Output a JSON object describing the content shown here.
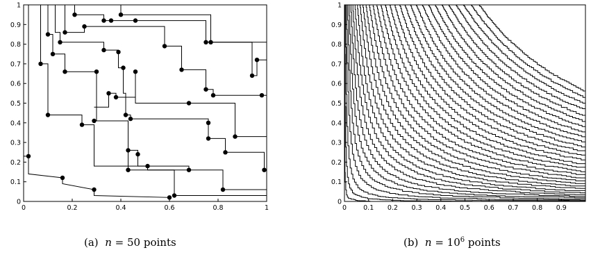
{
  "figure": {
    "panel_a": {
      "label": "(a)",
      "caption_var": "n",
      "caption_eq": " = ",
      "caption_value": "50",
      "caption_unit": " points",
      "x_ticks": [
        "0",
        "0.2",
        "0.4",
        "0.6",
        "0.8",
        "1"
      ],
      "y_ticks": [
        "0",
        "0.1",
        "0.2",
        "0.3",
        "0.4",
        "0.5",
        "0.6",
        "0.7",
        "0.8",
        "0.9",
        "1"
      ]
    },
    "panel_b": {
      "label": "(b)",
      "caption_var": "n",
      "caption_eq": " = ",
      "caption_base": "10",
      "caption_exp": "6",
      "caption_unit": " points",
      "x_ticks": [
        "0",
        "0.1",
        "0.2",
        "0.3",
        "0.4",
        "0.5",
        "0.6",
        "0.7",
        "0.8",
        "0.9"
      ],
      "y_ticks": [
        "0",
        "0.1",
        "0.2",
        "0.3",
        "0.4",
        "0.5",
        "0.6",
        "0.7",
        "0.8",
        "0.9",
        "1"
      ]
    }
  },
  "chart_data": [
    {
      "type": "scatter",
      "title": "",
      "xlim": [
        0,
        1
      ],
      "ylim": [
        0,
        1
      ],
      "grid": false,
      "note": "staircase chains drawn through points",
      "points": [
        [
          0.02,
          0.23
        ],
        [
          0.07,
          0.7
        ],
        [
          0.1,
          0.85
        ],
        [
          0.1,
          0.44
        ],
        [
          0.12,
          0.75
        ],
        [
          0.15,
          0.81
        ],
        [
          0.16,
          0.12
        ],
        [
          0.17,
          0.66
        ],
        [
          0.17,
          0.86
        ],
        [
          0.21,
          0.95
        ],
        [
          0.24,
          0.39
        ],
        [
          0.25,
          0.89
        ],
        [
          0.29,
          0.41
        ],
        [
          0.29,
          0.06
        ],
        [
          0.3,
          0.66
        ],
        [
          0.33,
          0.77
        ],
        [
          0.33,
          0.92
        ],
        [
          0.35,
          0.55
        ],
        [
          0.36,
          0.92
        ],
        [
          0.38,
          0.53
        ],
        [
          0.39,
          0.76
        ],
        [
          0.4,
          0.95
        ],
        [
          0.41,
          0.68
        ],
        [
          0.42,
          0.44
        ],
        [
          0.43,
          0.16
        ],
        [
          0.43,
          0.26
        ],
        [
          0.44,
          0.42
        ],
        [
          0.46,
          0.92
        ],
        [
          0.46,
          0.66
        ],
        [
          0.47,
          0.24
        ],
        [
          0.51,
          0.18
        ],
        [
          0.58,
          0.79
        ],
        [
          0.6,
          0.02
        ],
        [
          0.62,
          0.03
        ],
        [
          0.65,
          0.67
        ],
        [
          0.68,
          0.16
        ],
        [
          0.68,
          0.5
        ],
        [
          0.75,
          0.57
        ],
        [
          0.75,
          0.81
        ],
        [
          0.76,
          0.4
        ],
        [
          0.76,
          0.32
        ],
        [
          0.77,
          0.81
        ],
        [
          0.78,
          0.54
        ],
        [
          0.82,
          0.06
        ],
        [
          0.83,
          0.25
        ],
        [
          0.87,
          0.33
        ],
        [
          0.94,
          0.64
        ],
        [
          0.96,
          0.72
        ],
        [
          0.98,
          0.54
        ],
        [
          0.99,
          0.16
        ]
      ],
      "chains": [
        [
          [
            0,
            0.23
          ],
          [
            0.02,
            0.23
          ],
          [
            0.02,
            0.14
          ],
          [
            0.16,
            0.12
          ],
          [
            0.16,
            0.09
          ],
          [
            0.29,
            0.06
          ],
          [
            0.29,
            0.03
          ],
          [
            0.6,
            0.02
          ],
          [
            0.6,
            0
          ],
          [
            1,
            0
          ]
        ],
        [
          [
            0.02,
            1
          ],
          [
            0.02,
            0.23
          ]
        ],
        [
          [
            0.07,
            1
          ],
          [
            0.07,
            0.7
          ],
          [
            0.1,
            0.7
          ],
          [
            0.1,
            0.44
          ],
          [
            0.24,
            0.44
          ],
          [
            0.24,
            0.39
          ],
          [
            0.29,
            0.39
          ],
          [
            0.29,
            0.18
          ],
          [
            0.47,
            0.18
          ],
          [
            0.51,
            0.18
          ],
          [
            0.51,
            0.16
          ],
          [
            0.62,
            0.16
          ],
          [
            0.62,
            0.03
          ],
          [
            1,
            0.03
          ]
        ],
        [
          [
            0.1,
            1
          ],
          [
            0.1,
            0.85
          ],
          [
            0.12,
            0.85
          ],
          [
            0.12,
            0.75
          ],
          [
            0.17,
            0.75
          ],
          [
            0.17,
            0.66
          ],
          [
            0.3,
            0.66
          ],
          [
            0.3,
            0.41
          ],
          [
            0.43,
            0.41
          ],
          [
            0.43,
            0.26
          ],
          [
            0.47,
            0.26
          ],
          [
            0.47,
            0.18
          ],
          [
            0.68,
            0.18
          ],
          [
            0.68,
            0.16
          ],
          [
            0.82,
            0.16
          ],
          [
            0.82,
            0.06
          ],
          [
            1,
            0.06
          ]
        ],
        [
          [
            0.13,
            1
          ],
          [
            0.13,
            0.86
          ],
          [
            0.15,
            0.86
          ],
          [
            0.15,
            0.81
          ],
          [
            0.33,
            0.81
          ],
          [
            0.33,
            0.77
          ],
          [
            0.39,
            0.77
          ],
          [
            0.39,
            0.68
          ],
          [
            0.41,
            0.68
          ],
          [
            0.41,
            0.55
          ],
          [
            0.42,
            0.55
          ],
          [
            0.42,
            0.44
          ],
          [
            0.44,
            0.44
          ],
          [
            0.44,
            0.42
          ],
          [
            0.76,
            0.42
          ],
          [
            0.76,
            0.32
          ],
          [
            0.83,
            0.32
          ],
          [
            0.83,
            0.25
          ],
          [
            0.99,
            0.25
          ],
          [
            0.99,
            0.16
          ]
        ],
        [
          [
            0.17,
            1
          ],
          [
            0.17,
            0.86
          ],
          [
            0.25,
            0.86
          ],
          [
            0.25,
            0.89
          ],
          [
            0.58,
            0.89
          ],
          [
            0.58,
            0.79
          ],
          [
            0.65,
            0.79
          ],
          [
            0.65,
            0.67
          ],
          [
            0.75,
            0.67
          ],
          [
            0.75,
            0.57
          ],
          [
            0.78,
            0.57
          ],
          [
            0.78,
            0.54
          ],
          [
            1,
            0.54
          ]
        ],
        [
          [
            0.21,
            1
          ],
          [
            0.21,
            0.95
          ],
          [
            0.33,
            0.95
          ],
          [
            0.33,
            0.92
          ],
          [
            0.36,
            0.92
          ],
          [
            0.46,
            0.92
          ],
          [
            0.46,
            0.92
          ],
          [
            0.75,
            0.92
          ],
          [
            0.75,
            0.81
          ],
          [
            0.94,
            0.81
          ],
          [
            0.94,
            0.64
          ],
          [
            0.96,
            0.64
          ],
          [
            0.96,
            0.72
          ],
          [
            1,
            0.72
          ]
        ],
        [
          [
            0.29,
            0.48
          ],
          [
            0.35,
            0.48
          ],
          [
            0.35,
            0.55
          ],
          [
            0.38,
            0.55
          ],
          [
            0.38,
            0.53
          ],
          [
            0.46,
            0.53
          ],
          [
            0.46,
            0.66
          ],
          [
            0.46,
            0.5
          ],
          [
            0.68,
            0.5
          ],
          [
            0.68,
            0.5
          ],
          [
            0.87,
            0.5
          ],
          [
            0.87,
            0.33
          ],
          [
            1,
            0.33
          ]
        ],
        [
          [
            0.4,
            1
          ],
          [
            0.4,
            0.95
          ],
          [
            0.77,
            0.95
          ],
          [
            0.77,
            0.81
          ],
          [
            1,
            0.81
          ]
        ],
        [
          [
            0.43,
            0.26
          ],
          [
            0.43,
            0.16
          ],
          [
            0.68,
            0.16
          ]
        ],
        [
          [
            0.76,
            0.4
          ],
          [
            0.76,
            0.32
          ]
        ]
      ]
    },
    {
      "type": "line",
      "title": "",
      "xlim": [
        0,
        1
      ],
      "ylim": [
        0,
        1
      ],
      "grid": false,
      "note": "level-set staircase contours x*y = c (limit shape), approx 33 curves",
      "levels": [
        0.0003,
        0.0015,
        0.004,
        0.008,
        0.013,
        0.019,
        0.026,
        0.034,
        0.043,
        0.053,
        0.064,
        0.076,
        0.089,
        0.103,
        0.118,
        0.134,
        0.151,
        0.169,
        0.188,
        0.208,
        0.229,
        0.251,
        0.274,
        0.298,
        0.323,
        0.349,
        0.376,
        0.404,
        0.433,
        0.463,
        0.494,
        0.526,
        0.559
      ]
    }
  ]
}
